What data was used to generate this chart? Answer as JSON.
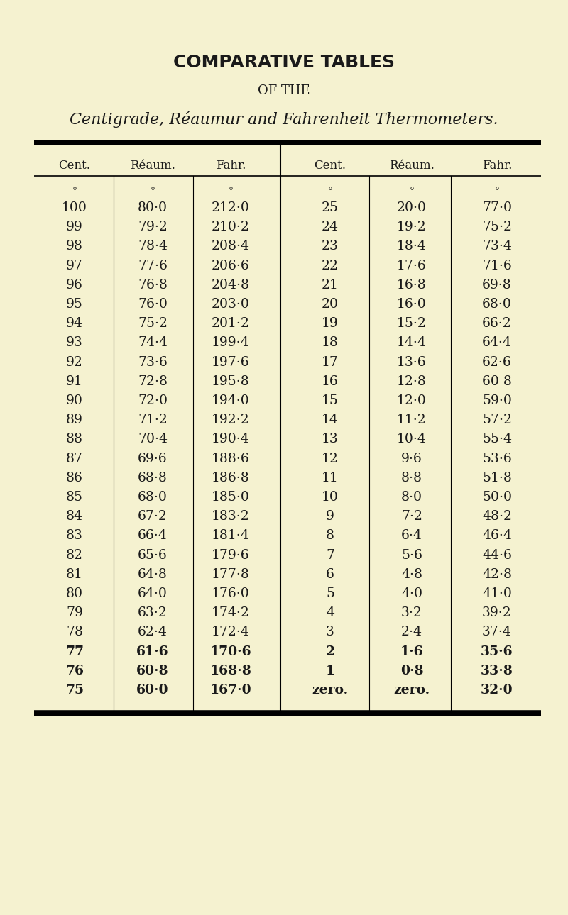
{
  "title1": "COMPARATIVE TABLES",
  "title2": "OF THE",
  "title3": "Centigrade, Réaumur and Fahrenheit Thermometers.",
  "bg_color": "#f5f2d0",
  "text_color": "#1a1a1a",
  "col_headers": [
    "Cent.",
    "Réaum.",
    "Fahr.",
    "Cent.",
    "Réaum.",
    "Fahr."
  ],
  "degree_symbols": [
    "°",
    "°",
    "°",
    "°",
    "°",
    "°"
  ],
  "left_table": [
    [
      "100",
      "80·0",
      "212·0"
    ],
    [
      "99",
      "79·2",
      "210·2"
    ],
    [
      "98",
      "78·4",
      "208·4"
    ],
    [
      "97",
      "77·6",
      "206·6"
    ],
    [
      "96",
      "76·8",
      "204·8"
    ],
    [
      "95",
      "76·0",
      "203·0"
    ],
    [
      "94",
      "75·2",
      "201·2"
    ],
    [
      "93",
      "74·4",
      "199·4"
    ],
    [
      "92",
      "73·6",
      "197·6"
    ],
    [
      "91",
      "72·8",
      "195·8"
    ],
    [
      "90",
      "72·0",
      "194·0"
    ],
    [
      "89",
      "71·2",
      "192·2"
    ],
    [
      "88",
      "70·4",
      "190·4"
    ],
    [
      "87",
      "69·6",
      "188·6"
    ],
    [
      "86",
      "68·8",
      "186·8"
    ],
    [
      "85",
      "68·0",
      "185·0"
    ],
    [
      "84",
      "67·2",
      "183·2"
    ],
    [
      "83",
      "66·4",
      "181·4"
    ],
    [
      "82",
      "65·6",
      "179·6"
    ],
    [
      "81",
      "64·8",
      "177·8"
    ],
    [
      "80",
      "64·0",
      "176·0"
    ],
    [
      "79",
      "63·2",
      "174·2"
    ],
    [
      "78",
      "62·4",
      "172·4"
    ],
    [
      "77",
      "61·6",
      "170·6"
    ],
    [
      "76",
      "60·8",
      "168·8"
    ],
    [
      "75",
      "60·0",
      "167·0"
    ]
  ],
  "right_table": [
    [
      "25",
      "20·0",
      "77·0"
    ],
    [
      "24",
      "19·2",
      "75·2"
    ],
    [
      "23",
      "18·4",
      "73·4"
    ],
    [
      "22",
      "17·6",
      "71·6"
    ],
    [
      "21",
      "16·8",
      "69·8"
    ],
    [
      "20",
      "16·0",
      "68·0"
    ],
    [
      "19",
      "15·2",
      "66·2"
    ],
    [
      "18",
      "14·4",
      "64·4"
    ],
    [
      "17",
      "13·6",
      "62·6"
    ],
    [
      "16",
      "12·8",
      "60 8"
    ],
    [
      "15",
      "12·0",
      "59·0"
    ],
    [
      "14",
      "11·2",
      "57·2"
    ],
    [
      "13",
      "10·4",
      "55·4"
    ],
    [
      "12",
      "9·6",
      "53·6"
    ],
    [
      "11",
      "8·8",
      "51·8"
    ],
    [
      "10",
      "8·0",
      "50·0"
    ],
    [
      "9",
      "7·2",
      "48·2"
    ],
    [
      "8",
      "6·4",
      "46·4"
    ],
    [
      "7",
      "5·6",
      "44·6"
    ],
    [
      "6",
      "4·8",
      "42·8"
    ],
    [
      "5",
      "4·0",
      "41·0"
    ],
    [
      "4",
      "3·2",
      "39·2"
    ],
    [
      "3",
      "2·4",
      "37·4"
    ],
    [
      "2",
      "1·6",
      "35·6"
    ],
    [
      "1",
      "0·8",
      "33·8"
    ],
    [
      "zero.",
      "zero.",
      "32·0"
    ]
  ]
}
